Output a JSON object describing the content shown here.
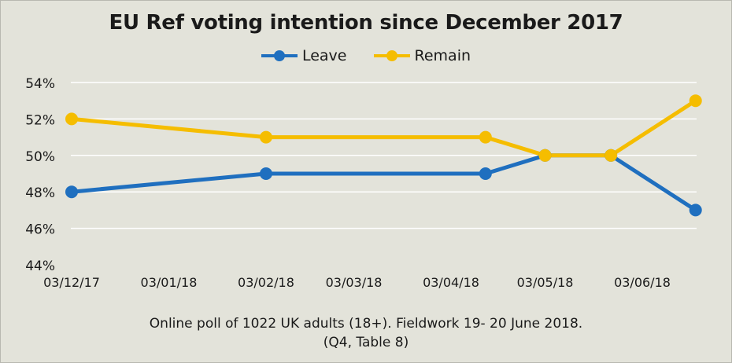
{
  "chart_data": {
    "type": "line",
    "title": "EU Ref voting intention since December 2017",
    "x_ticks": [
      "03/12/17",
      "03/01/18",
      "03/02/18",
      "03/03/18",
      "03/04/18",
      "03/05/18",
      "03/06/18"
    ],
    "y_ticks": [
      "44%",
      "46%",
      "48%",
      "50%",
      "52%",
      "54%"
    ],
    "ylim": [
      44,
      54
    ],
    "grid": true,
    "legend_position": "top-center",
    "series": [
      {
        "name": "Leave",
        "color": "#1f6fbf",
        "points": [
          {
            "x": "03/12/17",
            "y": 48
          },
          {
            "x": "03/02/18",
            "y": 49
          },
          {
            "x": "14/04/18",
            "y": 49
          },
          {
            "x": "03/05/18",
            "y": 50
          },
          {
            "x": "24/05/18",
            "y": 50
          },
          {
            "x": "20/06/18",
            "y": 47
          }
        ]
      },
      {
        "name": "Remain",
        "color": "#f5bd00",
        "points": [
          {
            "x": "03/12/17",
            "y": 52
          },
          {
            "x": "03/02/18",
            "y": 51
          },
          {
            "x": "14/04/18",
            "y": 51
          },
          {
            "x": "03/05/18",
            "y": 50
          },
          {
            "x": "24/05/18",
            "y": 50
          },
          {
            "x": "20/06/18",
            "y": 53
          }
        ]
      }
    ]
  },
  "caption": {
    "line1": "Online poll of 1022 UK adults (18+). Fieldwork 19- 20 June 2018.",
    "line2": "(Q4, Table 8)"
  }
}
